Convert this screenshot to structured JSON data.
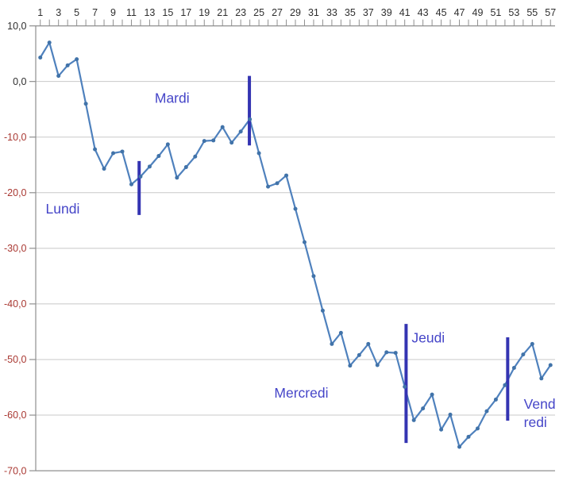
{
  "chart_data": {
    "type": "line",
    "title": "",
    "legend": "none",
    "grid": "horizontal",
    "x_axis_position": "top",
    "x_count": 57,
    "ylim": [
      -70,
      10
    ],
    "x": [
      1,
      2,
      3,
      4,
      5,
      6,
      7,
      8,
      9,
      10,
      11,
      12,
      13,
      14,
      15,
      16,
      17,
      18,
      19,
      20,
      21,
      22,
      23,
      24,
      25,
      26,
      27,
      28,
      29,
      30,
      31,
      32,
      33,
      34,
      35,
      36,
      37,
      38,
      39,
      40,
      41,
      42,
      43,
      44,
      45,
      46,
      47,
      48,
      49,
      50,
      51,
      52,
      53,
      54,
      55,
      56,
      57
    ],
    "values": [
      4.3,
      7.0,
      1.0,
      2.9,
      4.0,
      -4.0,
      -12.2,
      -15.7,
      -12.9,
      -12.6,
      -18.5,
      -17.1,
      -15.3,
      -13.4,
      -11.3,
      -17.3,
      -15.4,
      -13.5,
      -10.7,
      -10.6,
      -8.2,
      -11.0,
      -9.0,
      -6.8,
      -12.9,
      -18.9,
      -18.3,
      -16.9,
      -22.9,
      -28.9,
      -35.0,
      -41.2,
      -47.2,
      -45.2,
      -51.1,
      -49.2,
      -47.2,
      -51.0,
      -48.7,
      -48.8,
      -54.9,
      -60.9,
      -58.8,
      -56.3,
      -62.6,
      -59.9,
      -65.7,
      -63.9,
      -62.4,
      -59.3,
      -57.2,
      -54.6,
      -51.5,
      -49.1,
      -47.2,
      -53.4,
      -51.0
    ],
    "x_tick_labels": [
      "1",
      "3",
      "5",
      "7",
      "9",
      "11",
      "13",
      "15",
      "17",
      "19",
      "21",
      "23",
      "25",
      "27",
      "29",
      "31",
      "33",
      "35",
      "37",
      "39",
      "41",
      "43",
      "45",
      "47",
      "49",
      "51",
      "53",
      "55",
      "57"
    ],
    "y_ticks": [
      {
        "value": 10,
        "label": "10,0"
      },
      {
        "value": 0,
        "label": "0,0"
      },
      {
        "value": -10,
        "label": "-10,0"
      },
      {
        "value": -20,
        "label": "-20,0"
      },
      {
        "value": -30,
        "label": "-30,0"
      },
      {
        "value": -40,
        "label": "-40,0"
      },
      {
        "value": -50,
        "label": "-50,0"
      },
      {
        "value": -60,
        "label": "-60,0"
      },
      {
        "value": -70,
        "label": "-70,0"
      }
    ],
    "day_separators": [
      {
        "x": 11.85,
        "y_top": -14.3,
        "y_bottom": -24.0
      },
      {
        "x": 23.95,
        "y_top": 1.0,
        "y_bottom": -11.5
      },
      {
        "x": 41.15,
        "y_top": -43.6,
        "y_bottom": -65.0
      },
      {
        "x": 52.3,
        "y_top": -46.0,
        "y_bottom": -61.0
      }
    ],
    "annotations": [
      {
        "lines": [
          "Lundi"
        ],
        "x": 3.46,
        "y": -22.9,
        "anchor": "middle"
      },
      {
        "lines": [
          "Mardi"
        ],
        "x": 15.47,
        "y": -3.0,
        "anchor": "middle"
      },
      {
        "lines": [
          "Mercredi"
        ],
        "x": 29.65,
        "y": -56.0,
        "anchor": "middle"
      },
      {
        "lines": [
          "Jeudi"
        ],
        "x": 43.58,
        "y": -46.1,
        "anchor": "middle"
      },
      {
        "lines": [
          "Vend",
          "redi"
        ],
        "x": 54.07,
        "y": -59.0,
        "anchor": "start"
      }
    ],
    "colors": {
      "series_line": "#4F81BD",
      "marker": "#4173A9",
      "separator": "#3434B2",
      "annotation_text": "#4545C8",
      "grid": "#C8C8C8",
      "axis": "#8F8F8F",
      "tick_label": "#2E2E2E",
      "negative_tick_label": "#A93832"
    }
  }
}
